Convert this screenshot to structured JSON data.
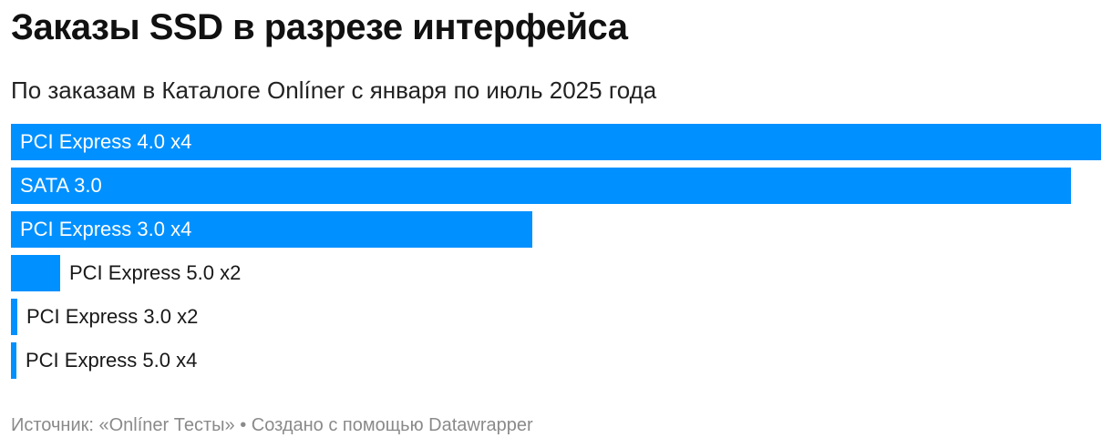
{
  "header": {
    "title": "Заказы SSD в разрезе интерфейса",
    "subtitle": "По заказам в Каталоге Onlíner с января по июль 2025 года"
  },
  "footer": {
    "source": "Источник: «Onlíner Тесты» • Создано с помощью Datawrapper"
  },
  "colors": {
    "bar": "#0090ff"
  },
  "chart_data": {
    "type": "bar",
    "orientation": "horizontal",
    "categories": [
      "PCI Express 4.0 x4",
      "SATA 3.0",
      "PCI Express 3.0 x4",
      "PCI Express 5.0 x2",
      "PCI Express 3.0 x2",
      "PCI Express 5.0 x4"
    ],
    "values": [
      100,
      97.2,
      47.8,
      4.5,
      0.6,
      0.5
    ],
    "xlim": [
      0,
      100
    ],
    "grid": false,
    "legend": "none"
  }
}
